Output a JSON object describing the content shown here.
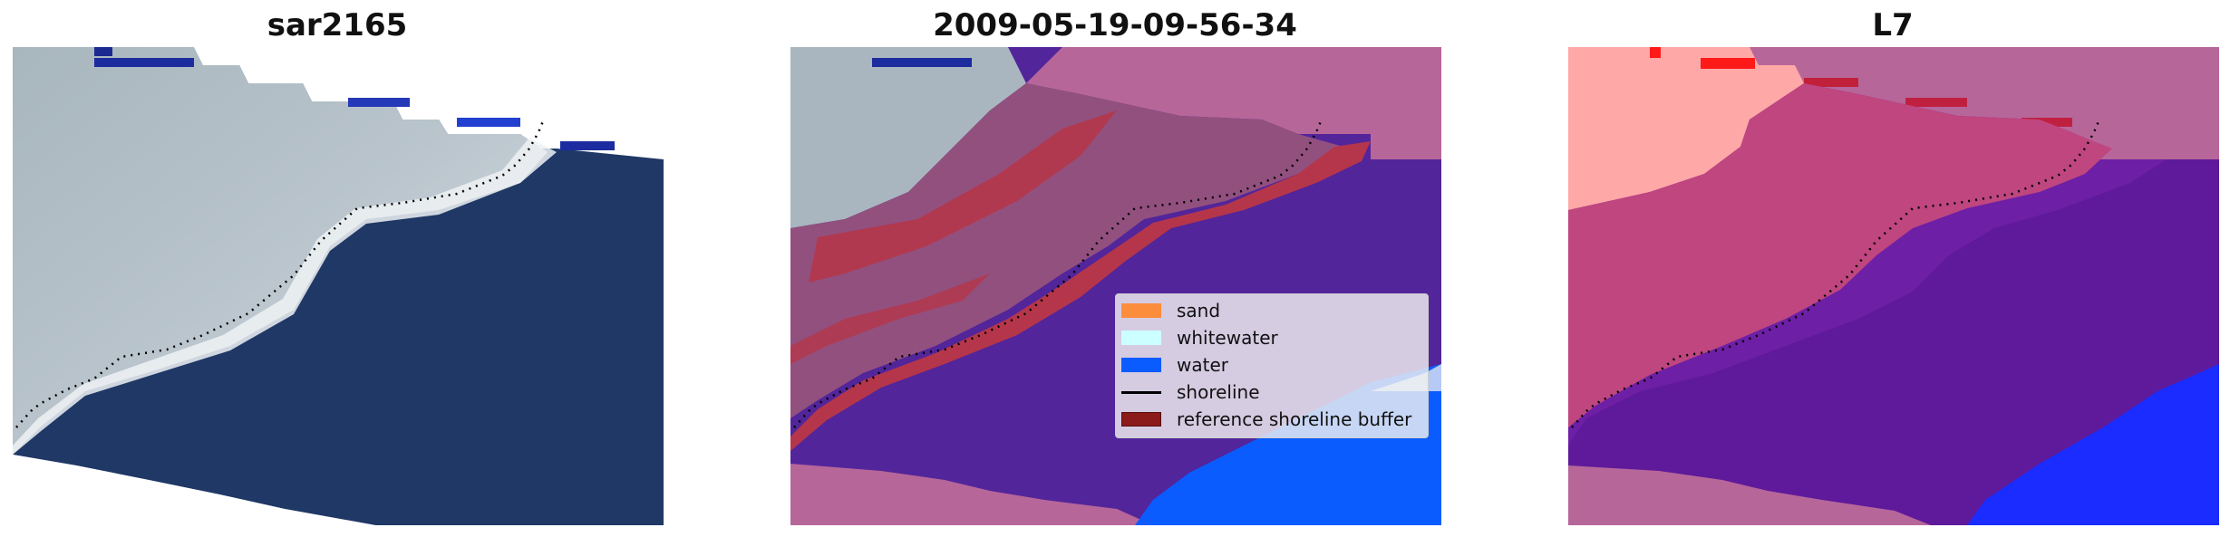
{
  "panels": [
    {
      "title": "sar2165"
    },
    {
      "title": "2009-05-19-09-56-34"
    },
    {
      "title": "L7"
    }
  ],
  "legend": {
    "items": [
      {
        "label": "sand",
        "color": "#fc8d3d",
        "kind": "patch"
      },
      {
        "label": "whitewater",
        "color": "#ccffff",
        "kind": "patch"
      },
      {
        "label": "water",
        "color": "#0a5cff",
        "kind": "patch"
      },
      {
        "label": "shoreline",
        "color": "#000000",
        "kind": "line"
      },
      {
        "label": "reference shoreline buffer",
        "color": "#8b1a1a",
        "kind": "patch"
      }
    ]
  },
  "colors": {
    "sea": "#1f3866",
    "surf": "#c8d2dc",
    "land_rgb": "#a9b6bf",
    "class_sand_overlay": "#b7669a",
    "class_water_overlay": "#52259a",
    "class_buffer_overlay": "#b5364a",
    "class_open_water": "#0a5cff",
    "l7_land": "#ffa3a3",
    "l7_sea": "#6d1fa6",
    "l7_water": "#1a2cff"
  }
}
